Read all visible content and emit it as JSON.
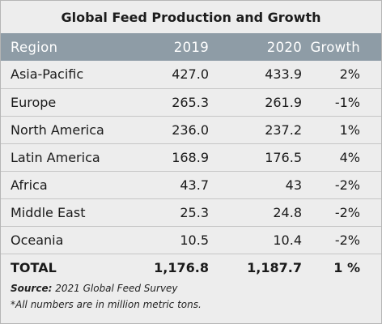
{
  "chart_data": {
    "type": "table",
    "title": "Global Feed Production and Growth",
    "columns": [
      "Region",
      "2019",
      "2020",
      "Growth"
    ],
    "rows": [
      {
        "region": "Asia-Pacific",
        "y2019": "427.0",
        "y2020": "433.9",
        "growth": "2%"
      },
      {
        "region": "Europe",
        "y2019": "265.3",
        "y2020": "261.9",
        "growth": "-1%"
      },
      {
        "region": "North America",
        "y2019": "236.0",
        "y2020": "237.2",
        "growth": "1%"
      },
      {
        "region": "Latin America",
        "y2019": "168.9",
        "y2020": "176.5",
        "growth": "4%"
      },
      {
        "region": "Africa",
        "y2019": "43.7",
        "y2020": "43",
        "growth": "-2%"
      },
      {
        "region": "Middle East",
        "y2019": "25.3",
        "y2020": "24.8",
        "growth": "-2%"
      },
      {
        "region": "Oceania",
        "y2019": "10.5",
        "y2020": "10.4",
        "growth": "-2%"
      }
    ],
    "total": {
      "region": "TOTAL",
      "y2019": "1,176.8",
      "y2020": "1,187.7",
      "growth": "1 %"
    },
    "source_label": "Source:",
    "source_text": "2021 Global Feed Survey",
    "note": "*All numbers are in million metric tons."
  },
  "colors": {
    "header_bg": "#8e9ca6",
    "background": "#ededed",
    "row_divider": "#c6c6c6"
  }
}
